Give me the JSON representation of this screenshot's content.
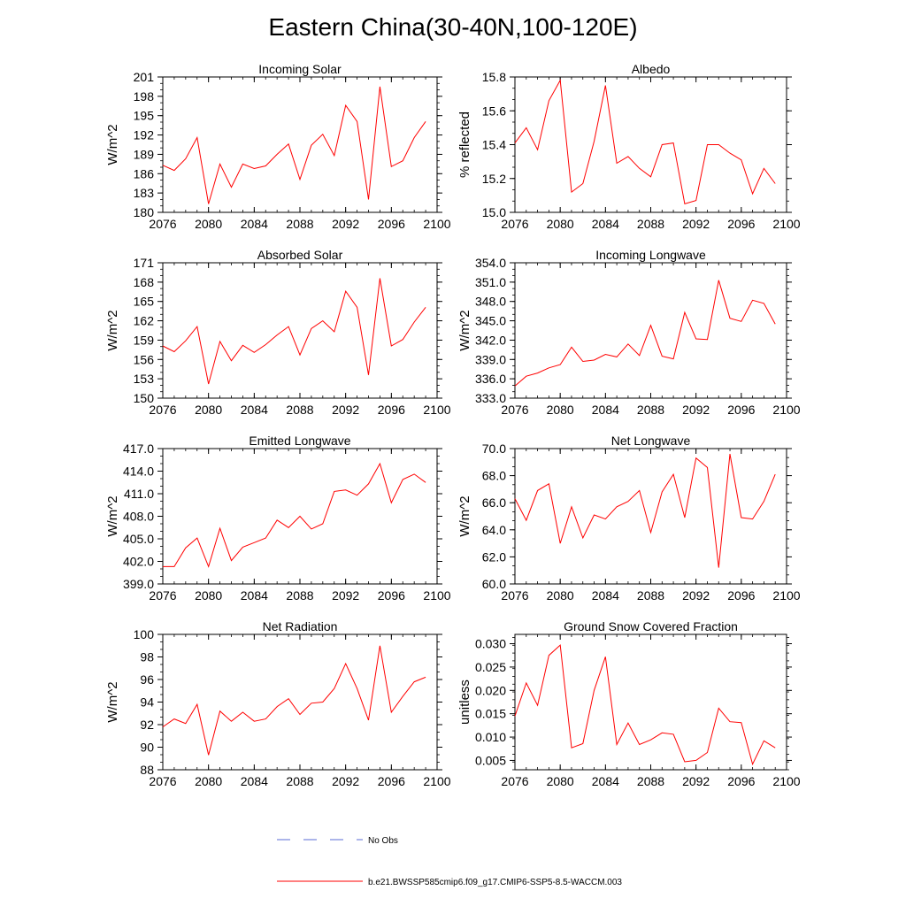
{
  "title": "Eastern China(30-40N,100-120E)",
  "legend": {
    "items": [
      {
        "label": "No Obs",
        "color": "#5a6bd6",
        "dash": true
      },
      {
        "label": "b.e21.BWSSP585cmip6.f09_g17.CMIP6-SSP5-8.5-WACCM.003",
        "color": "#ff0000",
        "dash": false
      }
    ]
  },
  "chart_data": [
    {
      "type": "line",
      "title": "Incoming Solar",
      "xlabel": "",
      "ylabel": "W/m^2",
      "xlim": [
        2076,
        2100
      ],
      "ylim": [
        180,
        201
      ],
      "xticks": [
        "2076",
        "2080",
        "2084",
        "2088",
        "2092",
        "2096",
        "2100"
      ],
      "yticks": [
        "180",
        "183",
        "186",
        "189",
        "192",
        "195",
        "198",
        "201"
      ],
      "x": [
        2076,
        2077,
        2078,
        2079,
        2080,
        2081,
        2082,
        2083,
        2084,
        2085,
        2086,
        2087,
        2088,
        2089,
        2090,
        2091,
        2092,
        2093,
        2094,
        2095,
        2096,
        2097,
        2098,
        2099
      ],
      "series": [
        {
          "name": "b.e21.BWSSP585cmip6.f09_g17.CMIP6-SSP5-8.5-WACCM.003",
          "color": "#ff0000",
          "values": [
            187.3,
            186.5,
            188.3,
            191.6,
            181.3,
            187.5,
            183.9,
            187.5,
            186.8,
            187.2,
            189.0,
            190.6,
            185.1,
            190.4,
            192.1,
            188.8,
            196.6,
            194.1,
            182.0,
            199.5,
            187.1,
            188.0,
            191.6,
            194.1
          ]
        }
      ]
    },
    {
      "type": "line",
      "title": "Albedo",
      "xlabel": "",
      "ylabel": "% reflected",
      "xlim": [
        2076,
        2100
      ],
      "ylim": [
        15.0,
        15.8
      ],
      "xticks": [
        "2076",
        "2080",
        "2084",
        "2088",
        "2092",
        "2096",
        "2100"
      ],
      "yticks": [
        "15.0",
        "15.2",
        "15.4",
        "15.6",
        "15.8"
      ],
      "x": [
        2076,
        2077,
        2078,
        2079,
        2080,
        2081,
        2082,
        2083,
        2084,
        2085,
        2086,
        2087,
        2088,
        2089,
        2090,
        2091,
        2092,
        2093,
        2094,
        2095,
        2096,
        2097,
        2098,
        2099
      ],
      "series": [
        {
          "name": "b.e21.BWSSP585cmip6.f09_g17.CMIP6-SSP5-8.5-WACCM.003",
          "color": "#ff0000",
          "values": [
            15.41,
            15.5,
            15.37,
            15.66,
            15.78,
            15.12,
            15.17,
            15.42,
            15.75,
            15.29,
            15.33,
            15.26,
            15.21,
            15.4,
            15.41,
            15.05,
            15.07,
            15.4,
            15.4,
            15.35,
            15.31,
            15.11,
            15.26,
            15.17
          ]
        }
      ]
    },
    {
      "type": "line",
      "title": "Absorbed Solar",
      "xlabel": "",
      "ylabel": "W/m^2",
      "xlim": [
        2076,
        2100
      ],
      "ylim": [
        150,
        171
      ],
      "xticks": [
        "2076",
        "2080",
        "2084",
        "2088",
        "2092",
        "2096",
        "2100"
      ],
      "yticks": [
        "150",
        "153",
        "156",
        "159",
        "162",
        "165",
        "168",
        "171"
      ],
      "x": [
        2076,
        2077,
        2078,
        2079,
        2080,
        2081,
        2082,
        2083,
        2084,
        2085,
        2086,
        2087,
        2088,
        2089,
        2090,
        2091,
        2092,
        2093,
        2094,
        2095,
        2096,
        2097,
        2098,
        2099
      ],
      "series": [
        {
          "name": "b.e21.BWSSP585cmip6.f09_g17.CMIP6-SSP5-8.5-WACCM.003",
          "color": "#ff0000",
          "values": [
            158.1,
            157.2,
            158.9,
            161.1,
            152.2,
            158.8,
            155.8,
            158.2,
            157.1,
            158.3,
            159.8,
            161.1,
            156.7,
            160.8,
            162.0,
            160.3,
            166.6,
            164.1,
            153.6,
            168.6,
            158.1,
            159.1,
            161.8,
            164.1
          ]
        }
      ]
    },
    {
      "type": "line",
      "title": "Incoming Longwave",
      "xlabel": "",
      "ylabel": "W/m^2",
      "xlim": [
        2076,
        2100
      ],
      "ylim": [
        333.0,
        354.0
      ],
      "xticks": [
        "2076",
        "2080",
        "2084",
        "2088",
        "2092",
        "2096",
        "2100"
      ],
      "yticks": [
        "333.0",
        "336.0",
        "339.0",
        "342.0",
        "345.0",
        "348.0",
        "351.0",
        "354.0"
      ],
      "x": [
        2076,
        2077,
        2078,
        2079,
        2080,
        2081,
        2082,
        2083,
        2084,
        2085,
        2086,
        2087,
        2088,
        2089,
        2090,
        2091,
        2092,
        2093,
        2094,
        2095,
        2096,
        2097,
        2098,
        2099
      ],
      "series": [
        {
          "name": "b.e21.BWSSP585cmip6.f09_g17.CMIP6-SSP5-8.5-WACCM.003",
          "color": "#ff0000",
          "values": [
            334.9,
            336.4,
            336.9,
            337.7,
            338.2,
            340.9,
            338.7,
            338.9,
            339.8,
            339.4,
            341.4,
            339.6,
            344.3,
            339.5,
            339.1,
            346.3,
            342.2,
            342.1,
            351.3,
            345.4,
            344.9,
            348.2,
            347.7,
            344.5
          ]
        }
      ]
    },
    {
      "type": "line",
      "title": "Emitted Longwave",
      "xlabel": "",
      "ylabel": "W/m^2",
      "xlim": [
        2076,
        2100
      ],
      "ylim": [
        399.0,
        417.0
      ],
      "xticks": [
        "2076",
        "2080",
        "2084",
        "2088",
        "2092",
        "2096",
        "2100"
      ],
      "yticks": [
        "399.0",
        "402.0",
        "405.0",
        "408.0",
        "411.0",
        "414.0",
        "417.0"
      ],
      "x": [
        2076,
        2077,
        2078,
        2079,
        2080,
        2081,
        2082,
        2083,
        2084,
        2085,
        2086,
        2087,
        2088,
        2089,
        2090,
        2091,
        2092,
        2093,
        2094,
        2095,
        2096,
        2097,
        2098,
        2099
      ],
      "series": [
        {
          "name": "b.e21.BWSSP585cmip6.f09_g17.CMIP6-SSP5-8.5-WACCM.003",
          "color": "#ff0000",
          "values": [
            401.3,
            401.3,
            403.8,
            405.1,
            401.3,
            406.4,
            402.1,
            403.9,
            404.5,
            405.1,
            407.5,
            406.5,
            408.0,
            406.3,
            407.0,
            411.3,
            411.5,
            410.8,
            412.3,
            415.0,
            409.8,
            412.9,
            413.6,
            412.5
          ]
        }
      ]
    },
    {
      "type": "line",
      "title": "Net Longwave",
      "xlabel": "",
      "ylabel": "W/m^2",
      "xlim": [
        2076,
        2100
      ],
      "ylim": [
        60.0,
        70.0
      ],
      "xticks": [
        "2076",
        "2080",
        "2084",
        "2088",
        "2092",
        "2096",
        "2100"
      ],
      "yticks": [
        "60.0",
        "62.0",
        "64.0",
        "66.0",
        "68.0",
        "70.0"
      ],
      "x": [
        2076,
        2077,
        2078,
        2079,
        2080,
        2081,
        2082,
        2083,
        2084,
        2085,
        2086,
        2087,
        2088,
        2089,
        2090,
        2091,
        2092,
        2093,
        2094,
        2095,
        2096,
        2097,
        2098,
        2099
      ],
      "series": [
        {
          "name": "b.e21.BWSSP585cmip6.f09_g17.CMIP6-SSP5-8.5-WACCM.003",
          "color": "#ff0000",
          "values": [
            66.3,
            64.7,
            66.9,
            67.4,
            63.0,
            65.7,
            63.4,
            65.1,
            64.8,
            65.7,
            66.1,
            66.9,
            63.8,
            66.8,
            68.1,
            64.9,
            69.3,
            68.6,
            61.2,
            69.6,
            64.9,
            64.8,
            66.1,
            68.1
          ]
        }
      ]
    },
    {
      "type": "line",
      "title": "Net Radiation",
      "xlabel": "",
      "ylabel": "W/m^2",
      "xlim": [
        2076,
        2100
      ],
      "ylim": [
        88,
        100
      ],
      "xticks": [
        "2076",
        "2080",
        "2084",
        "2088",
        "2092",
        "2096",
        "2100"
      ],
      "yticks": [
        "88",
        "90",
        "92",
        "94",
        "96",
        "98",
        "100"
      ],
      "x": [
        2076,
        2077,
        2078,
        2079,
        2080,
        2081,
        2082,
        2083,
        2084,
        2085,
        2086,
        2087,
        2088,
        2089,
        2090,
        2091,
        2092,
        2093,
        2094,
        2095,
        2096,
        2097,
        2098,
        2099
      ],
      "series": [
        {
          "name": "b.e21.BWSSP585cmip6.f09_g17.CMIP6-SSP5-8.5-WACCM.003",
          "color": "#ff0000",
          "values": [
            91.8,
            92.5,
            92.1,
            93.8,
            89.3,
            93.2,
            92.3,
            93.1,
            92.3,
            92.5,
            93.6,
            94.3,
            92.9,
            93.9,
            94.0,
            95.2,
            97.4,
            95.2,
            92.4,
            99.0,
            93.1,
            94.5,
            95.8,
            96.2
          ]
        }
      ]
    },
    {
      "type": "line",
      "title": "Ground Snow Covered Fraction",
      "xlabel": "",
      "ylabel": "unitless",
      "xlim": [
        2076,
        2100
      ],
      "ylim": [
        0.003,
        0.032
      ],
      "xticks": [
        "2076",
        "2080",
        "2084",
        "2088",
        "2092",
        "2096",
        "2100"
      ],
      "yticks": [
        "0.005",
        "0.010",
        "0.015",
        "0.020",
        "0.025",
        "0.030"
      ],
      "x": [
        2076,
        2077,
        2078,
        2079,
        2080,
        2081,
        2082,
        2083,
        2084,
        2085,
        2086,
        2087,
        2088,
        2089,
        2090,
        2091,
        2092,
        2093,
        2094,
        2095,
        2096,
        2097,
        2098,
        2099
      ],
      "series": [
        {
          "name": "b.e21.BWSSP585cmip6.f09_g17.CMIP6-SSP5-8.5-WACCM.003",
          "color": "#ff0000",
          "values": [
            0.0145,
            0.0216,
            0.0168,
            0.0275,
            0.0297,
            0.0077,
            0.0086,
            0.02,
            0.0272,
            0.0084,
            0.013,
            0.0084,
            0.0094,
            0.0109,
            0.0106,
            0.0047,
            0.005,
            0.0067,
            0.0162,
            0.0133,
            0.0131,
            0.0042,
            0.0092,
            0.0077
          ]
        }
      ]
    }
  ]
}
